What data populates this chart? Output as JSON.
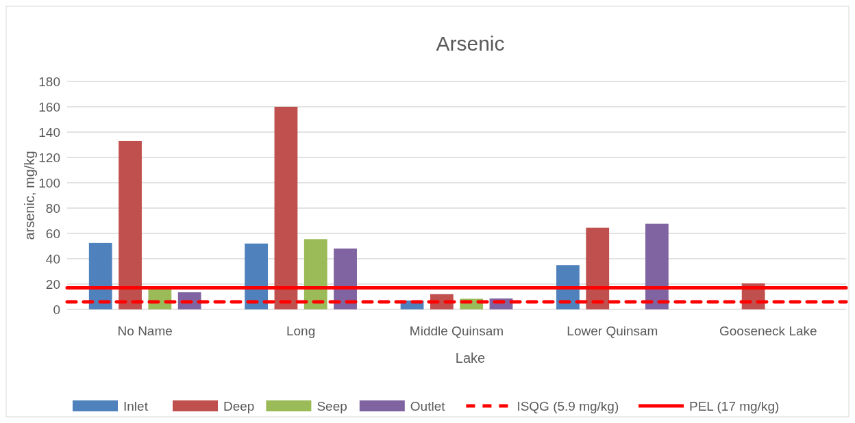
{
  "chart_data": {
    "type": "bar",
    "title": "Arsenic",
    "xlabel": "Lake",
    "ylabel": "arsenic, mg/kg",
    "categories": [
      "No Name",
      "Long",
      "Middle Quinsam",
      "Lower Quinsam",
      "Gooseneck Lake"
    ],
    "series": [
      {
        "name": "Inlet",
        "color": "#4f81bd",
        "values": [
          52.5,
          52,
          7,
          35,
          null
        ]
      },
      {
        "name": "Deep",
        "color": "#c0504d",
        "values": [
          133,
          160,
          12,
          64.5,
          20.5
        ]
      },
      {
        "name": "Seep",
        "color": "#9bbb59",
        "values": [
          15.7,
          55.5,
          8.4,
          null,
          null
        ]
      },
      {
        "name": "Outlet",
        "color": "#8064a2",
        "values": [
          13.5,
          48,
          8.6,
          67.7,
          null
        ]
      }
    ],
    "ref_lines": [
      {
        "axis": "y",
        "value": 5.9,
        "label": "ISQG (5.9 mg/kg)",
        "color": "#ff0000",
        "line_style": "dashed"
      },
      {
        "axis": "y",
        "value": 17,
        "label": "PEL (17 mg/kg)",
        "color": "#ff0000",
        "line_style": "solid"
      }
    ],
    "ylim": [
      0,
      180
    ],
    "yticks": [
      0,
      20,
      40,
      60,
      80,
      100,
      120,
      140,
      160,
      180
    ],
    "grid": "y",
    "legend": "bottom"
  }
}
